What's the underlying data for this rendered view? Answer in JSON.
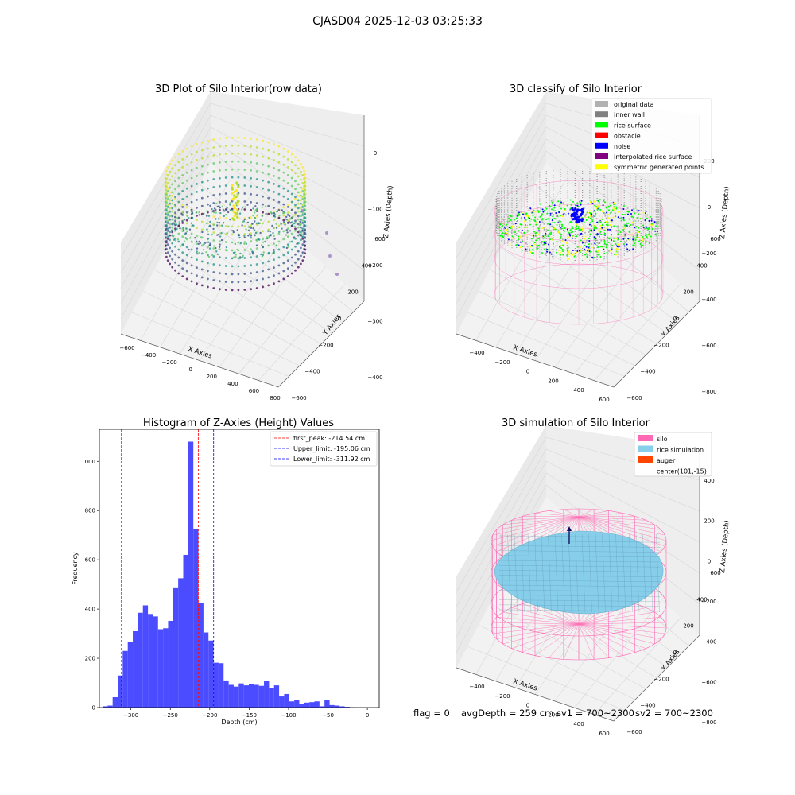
{
  "figure": {
    "suptitle": "CJASD04 2025-12-03 03:25:33",
    "footer": {
      "flag": "flag = 0",
      "avg_depth": "avgDepth = 259 cm",
      "sv1": "sv1 = 700~2300",
      "sv2": "sv2 = 700~2300"
    }
  },
  "colors": {
    "hist_bar": "#4b4bff",
    "first_peak_line": "#ff0000",
    "limit_line": "#0000ff",
    "silo_pink": "#ff69b4",
    "rice_sim": "#87ceeb",
    "auger": "#ff4500"
  },
  "chart_data": [
    {
      "type": "scatter",
      "title": "3D Plot of Silo Interior(row data)",
      "xlabel": "X Axies",
      "ylabel": "Y Axies",
      "zlabel": "Z Axies (Depth)",
      "x_ticks": [
        "−600",
        "−400",
        "−200",
        "0",
        "200",
        "400",
        "600",
        "800"
      ],
      "y_ticks": [
        "−600",
        "−400",
        "−200",
        "0",
        "200",
        "400",
        "600"
      ],
      "z_ticks": [
        "0",
        "−100",
        "−200",
        "−300",
        "−400"
      ],
      "xlim": [
        -650,
        900
      ],
      "ylim": [
        -650,
        650
      ],
      "zlim": [
        -450,
        20
      ],
      "colormap": "viridis",
      "grid": true
    },
    {
      "type": "scatter",
      "title": "3D classify of Silo Interior",
      "xlabel": "X Axies",
      "ylabel": "Y Axies",
      "zlabel": "Z Axies (Depth)",
      "x_ticks": [
        "−400",
        "−200",
        "0",
        "200",
        "400",
        "600"
      ],
      "y_ticks": [
        "−600",
        "−400",
        "−200",
        "0",
        "200",
        "400",
        "600"
      ],
      "z_ticks": [
        "200",
        "0",
        "−200",
        "−400",
        "−600",
        "−800"
      ],
      "legend_position": "top-right",
      "legend": [
        {
          "label": "original data",
          "color": "#b0b0b0"
        },
        {
          "label": "inner wall",
          "color": "#808080"
        },
        {
          "label": "rice surface",
          "color": "#00ff00"
        },
        {
          "label": "obstacle",
          "color": "#ff0000"
        },
        {
          "label": "noise",
          "color": "#0000ff"
        },
        {
          "label": "interpolated rice surface",
          "color": "#800080"
        },
        {
          "label": "symmetric generated points",
          "color": "#ffff00"
        }
      ],
      "grid": true
    },
    {
      "type": "bar",
      "title": "Histogram of Z-Axies (Height) Values",
      "xlabel": "Depth (cm)",
      "ylabel": "Frequency",
      "bin_edges_start": -336,
      "bin_width": 6.4,
      "counts": [
        5,
        8,
        42,
        130,
        230,
        268,
        310,
        385,
        415,
        380,
        370,
        318,
        322,
        352,
        488,
        525,
        620,
        1080,
        725,
        425,
        305,
        272,
        182,
        180,
        110,
        92,
        85,
        98,
        90,
        95,
        92,
        88,
        108,
        80,
        90,
        45,
        55,
        25,
        30,
        15,
        20,
        22,
        25,
        5,
        30,
        10,
        8,
        5,
        3,
        1,
        0,
        0
      ],
      "x_ticks": [
        -300,
        -250,
        -200,
        -150,
        -100,
        -50,
        0
      ],
      "y_ticks": [
        0,
        200,
        400,
        600,
        800,
        1000
      ],
      "xlim": [
        -340,
        15
      ],
      "ylim": [
        0,
        1130
      ],
      "vlines": [
        {
          "label": "first_peak: -214.54 cm",
          "x": -214.54,
          "color": "#ff0000"
        },
        {
          "label": "Upper_limit: -195.06 cm",
          "x": -195.06,
          "color": "#0000ff"
        },
        {
          "label": "Lower_limit: -311.92 cm",
          "x": -311.92,
          "color": "#0000ff"
        }
      ],
      "legend_position": "top-right",
      "grid": false
    },
    {
      "type": "surface",
      "title": "3D simulation of Silo Interior",
      "xlabel": "X Axies",
      "ylabel": "Y Axies",
      "zlabel": "Z Axies (Depth)",
      "x_ticks": [
        "−400",
        "−200",
        "0",
        "200",
        "400",
        "600"
      ],
      "y_ticks": [
        "−600",
        "−400",
        "−200",
        "0",
        "200",
        "400",
        "600"
      ],
      "z_ticks": [
        "400",
        "200",
        "0",
        "−200",
        "−400",
        "−600",
        "−800"
      ],
      "legend_position": "top-right",
      "legend": [
        {
          "label": "silo",
          "color": "#ff69b4"
        },
        {
          "label": "rice simulation",
          "color": "#87ceeb"
        },
        {
          "label": "auger",
          "color": "#ff4500"
        },
        {
          "label": "center(101,-15)",
          "color": ""
        }
      ],
      "grid": true
    }
  ]
}
